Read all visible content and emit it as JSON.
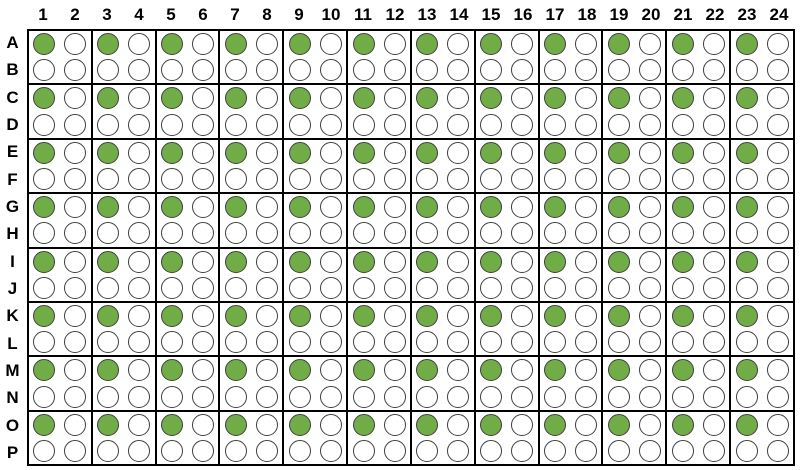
{
  "plate": {
    "column_labels": [
      "1",
      "2",
      "3",
      "4",
      "5",
      "6",
      "7",
      "8",
      "9",
      "10",
      "11",
      "12",
      "13",
      "14",
      "15",
      "16",
      "17",
      "18",
      "19",
      "20",
      "21",
      "22",
      "23",
      "24"
    ],
    "row_labels": [
      "A",
      "B",
      "C",
      "D",
      "E",
      "F",
      "G",
      "H",
      "I",
      "J",
      "K",
      "L",
      "M",
      "N",
      "O",
      "P"
    ],
    "block_rows": 8,
    "block_cols": 12,
    "wells_per_block": 4,
    "filled_wells": [
      "A1",
      "A3",
      "A5",
      "A7",
      "A9",
      "A11",
      "A13",
      "A15",
      "A17",
      "A19",
      "A21",
      "A23",
      "C1",
      "C3",
      "C5",
      "C7",
      "C9",
      "C11",
      "C13",
      "C15",
      "C17",
      "C19",
      "C21",
      "C23",
      "E1",
      "E3",
      "E5",
      "E7",
      "E9",
      "E11",
      "E13",
      "E15",
      "E17",
      "E19",
      "E21",
      "E23",
      "G1",
      "G3",
      "G5",
      "G7",
      "G9",
      "G11",
      "G13",
      "G15",
      "G17",
      "G19",
      "G21",
      "G23",
      "I1",
      "I3",
      "I5",
      "I7",
      "I9",
      "I11",
      "I13",
      "I15",
      "I17",
      "I19",
      "I21",
      "I23",
      "K1",
      "K3",
      "K5",
      "K7",
      "K9",
      "K11",
      "K13",
      "K15",
      "K17",
      "K19",
      "K21",
      "K23",
      "M1",
      "M3",
      "M5",
      "M7",
      "M9",
      "M11",
      "M13",
      "M15",
      "M17",
      "M19",
      "M21",
      "M23",
      "O1",
      "O3",
      "O5",
      "O7",
      "O9",
      "O11",
      "O13",
      "O15",
      "O17",
      "O19",
      "O21",
      "O23"
    ],
    "colors": {
      "filled": "#70AD47",
      "empty": "#FFFFFF",
      "well_outline": "#3F3F3F",
      "block_border": "#000000",
      "label_color": "#000000",
      "background": "#FFFFFF"
    }
  }
}
